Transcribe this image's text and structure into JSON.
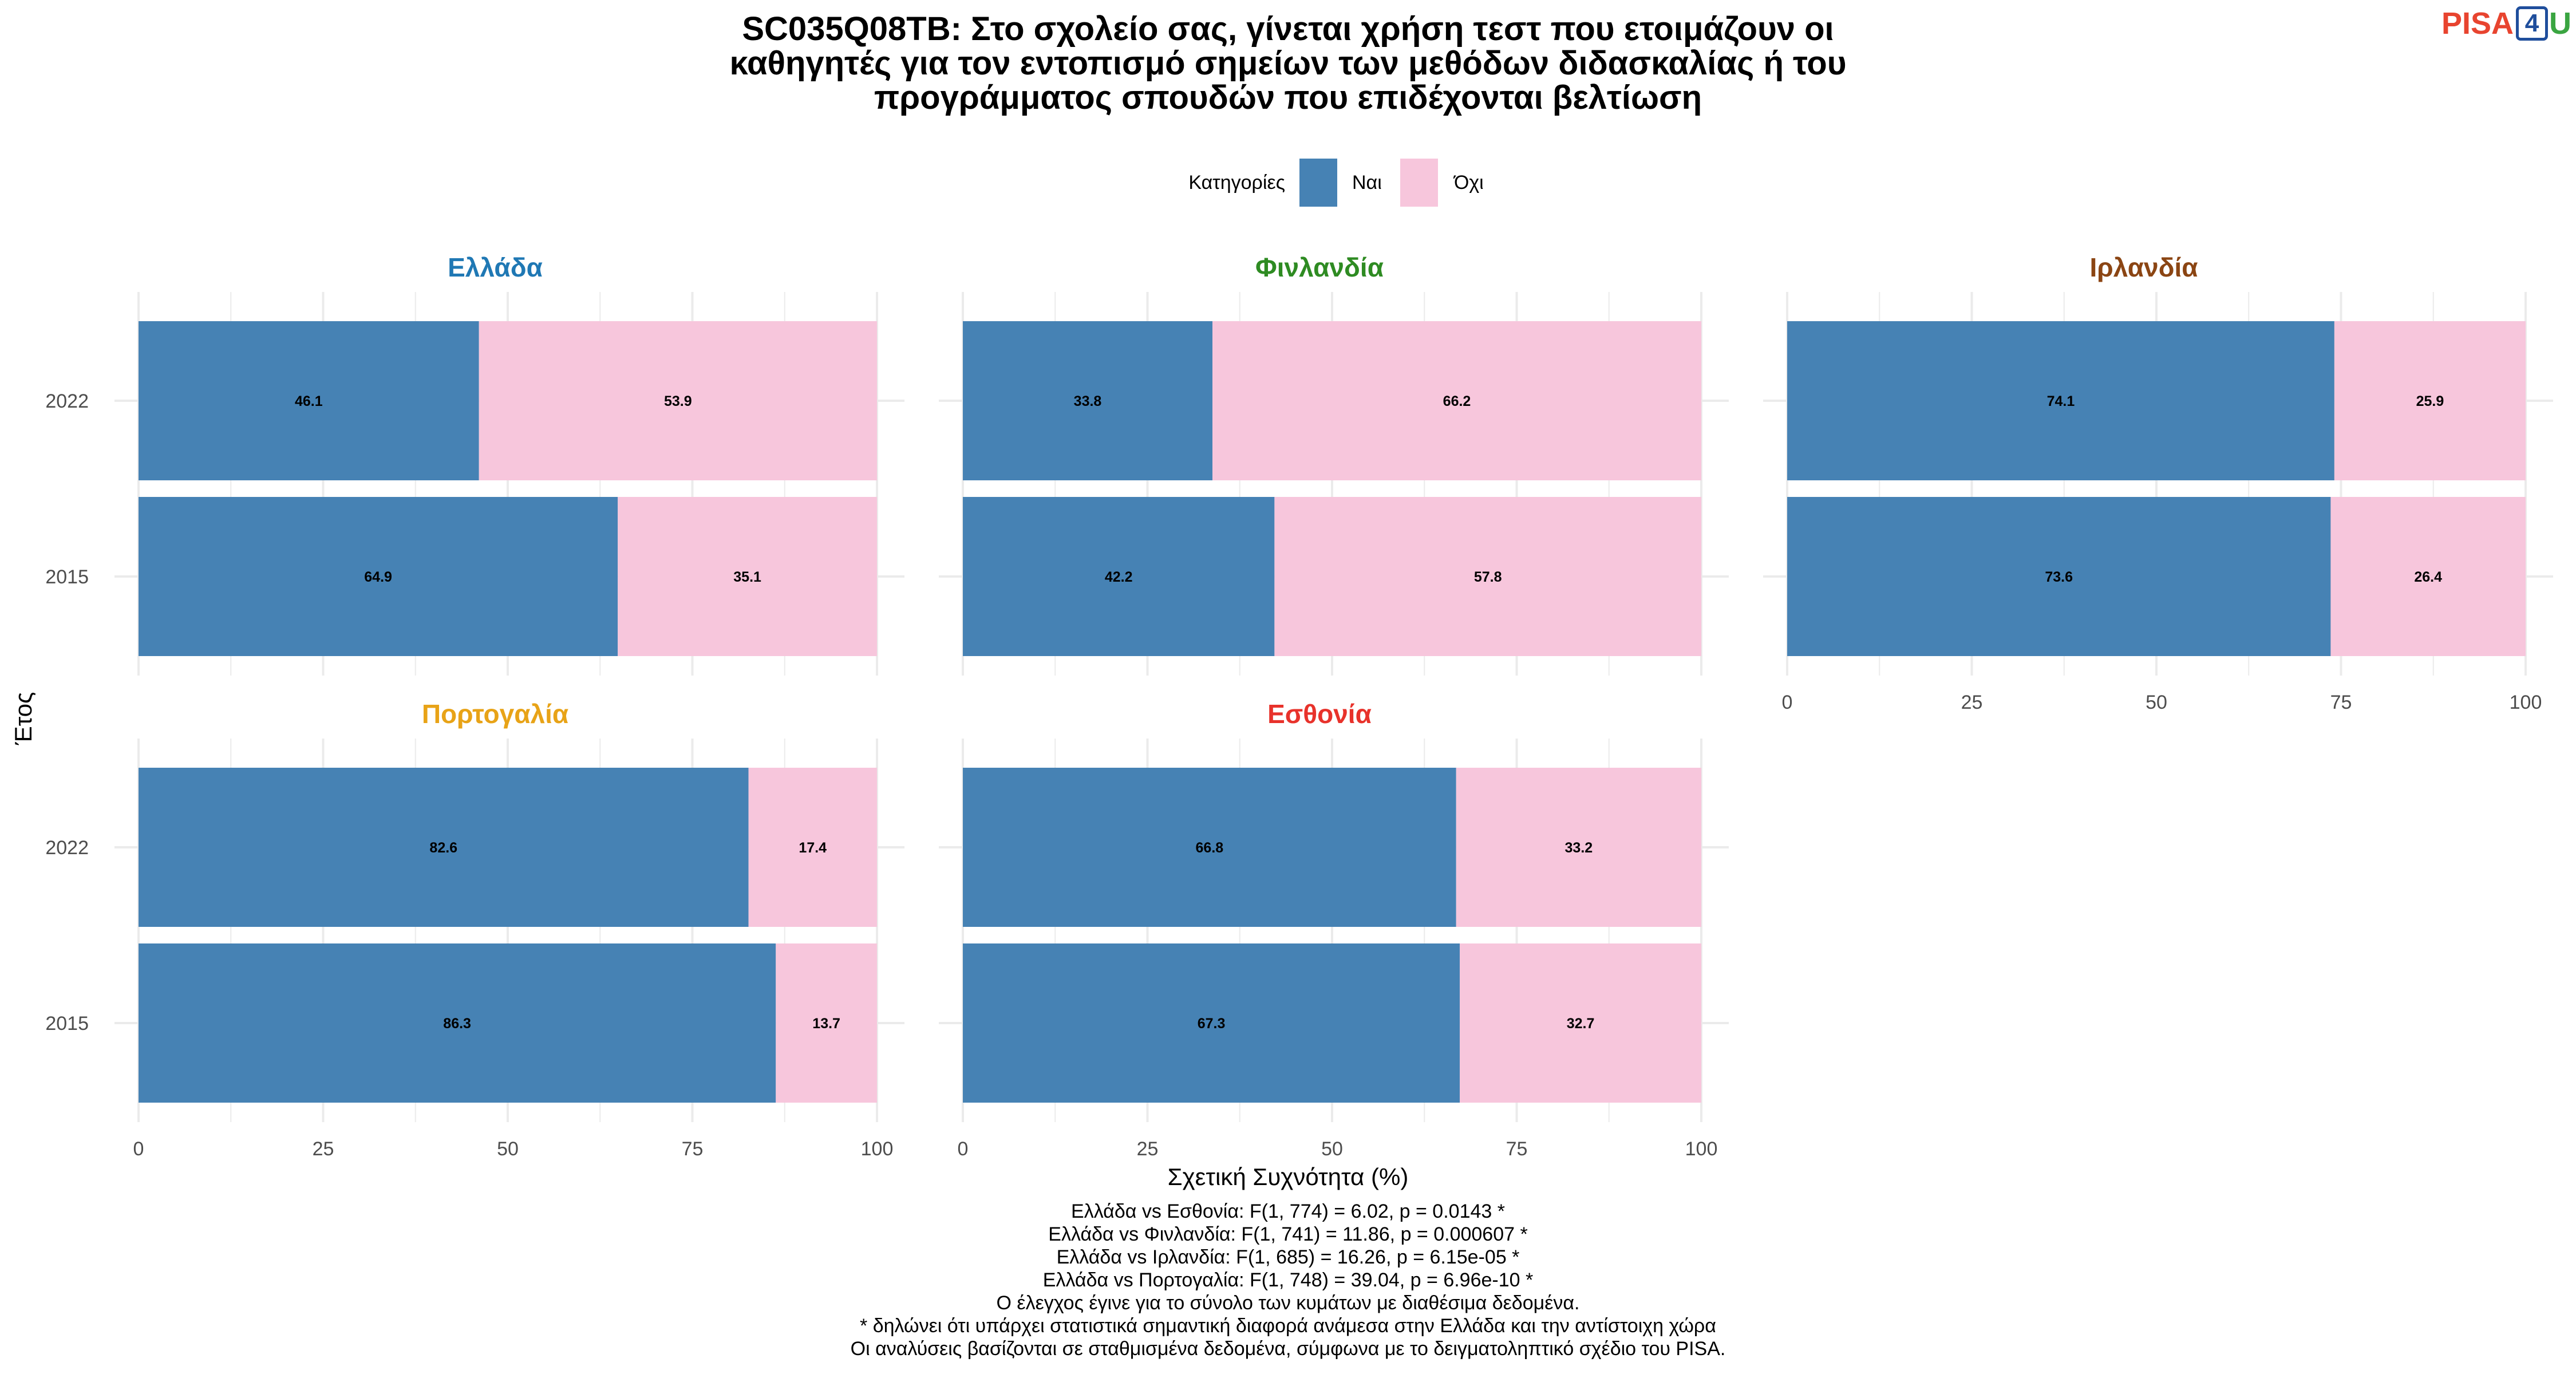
{
  "title_lines": [
    "SC035Q08TB: Στο σχολείο σας, γίνεται χρήση τεστ που ετοιμάζουν οι",
    "καθηγητές για τον εντοπισμό σημείων των μεθόδων διδασκαλίας ή του",
    "προγράμματος σπουδών που επιδέχονται βελτίωση"
  ],
  "logo": {
    "part1": "PISA",
    "part2": "4",
    "part3": "U"
  },
  "colors": {
    "nai": "#4682b4",
    "oxi": "#f7c6dc",
    "grid": "#ebebeb"
  },
  "chart_data": {
    "type": "bar",
    "orientation": "horizontal",
    "stacked": true,
    "legend": {
      "title": "Κατηγορίες",
      "position": "top",
      "entries": [
        "Ναι",
        "Όχι"
      ]
    },
    "xlabel": "Σχετική Συχνότητα (%)",
    "ylabel": "Έτος",
    "xlim": [
      0,
      100
    ],
    "xticks": [
      "0",
      "25",
      "50",
      "75",
      "100"
    ],
    "categories": [
      "2022",
      "2015"
    ],
    "panels": [
      {
        "name": "Ελλάδα",
        "color": "#1f78b4",
        "series": [
          {
            "name": "Ναι",
            "values": [
              46.1,
              64.9
            ]
          },
          {
            "name": "Όχι",
            "values": [
              53.9,
              35.1
            ]
          }
        ]
      },
      {
        "name": "Φινλανδία",
        "color": "#2e8b22",
        "series": [
          {
            "name": "Ναι",
            "values": [
              33.8,
              42.2
            ]
          },
          {
            "name": "Όχι",
            "values": [
              66.2,
              57.8
            ]
          }
        ]
      },
      {
        "name": "Ιρλανδία",
        "color": "#8b4513",
        "series": [
          {
            "name": "Ναι",
            "values": [
              74.1,
              73.6
            ]
          },
          {
            "name": "Όχι",
            "values": [
              25.9,
              26.4
            ]
          }
        ]
      },
      {
        "name": "Πορτογαλία",
        "color": "#e8a317",
        "series": [
          {
            "name": "Ναι",
            "values": [
              82.6,
              86.3
            ]
          },
          {
            "name": "Όχι",
            "values": [
              17.4,
              13.7
            ]
          }
        ]
      },
      {
        "name": "Εσθονία",
        "color": "#e8322b",
        "series": [
          {
            "name": "Ναι",
            "values": [
              66.8,
              67.3
            ]
          },
          {
            "name": "Όχι",
            "values": [
              33.2,
              32.7
            ]
          }
        ]
      }
    ]
  },
  "footnotes": [
    "Ελλάδα vs Εσθονία: F(1, 774) = 6.02, p = 0.0143 *",
    "Ελλάδα vs Φινλανδία: F(1, 741) = 11.86, p = 0.000607 *",
    "Ελλάδα vs Ιρλανδία: F(1, 685) = 16.26, p = 6.15e-05 *",
    "Ελλάδα vs Πορτογαλία: F(1, 748) = 39.04, p = 6.96e-10 *",
    "Ο έλεγχος έγινε για το σύνολο των κυμάτων με διαθέσιμα δεδομένα.",
    "* δηλώνει ότι υπάρχει στατιστικά σημαντική διαφορά ανάμεσα στην Ελλάδα και την αντίστοιχη χώρα",
    "Οι αναλύσεις βασίζονται σε σταθμισμένα δεδομένα, σύμφωνα με το δειγματοληπτικό σχέδιο του PISA."
  ]
}
